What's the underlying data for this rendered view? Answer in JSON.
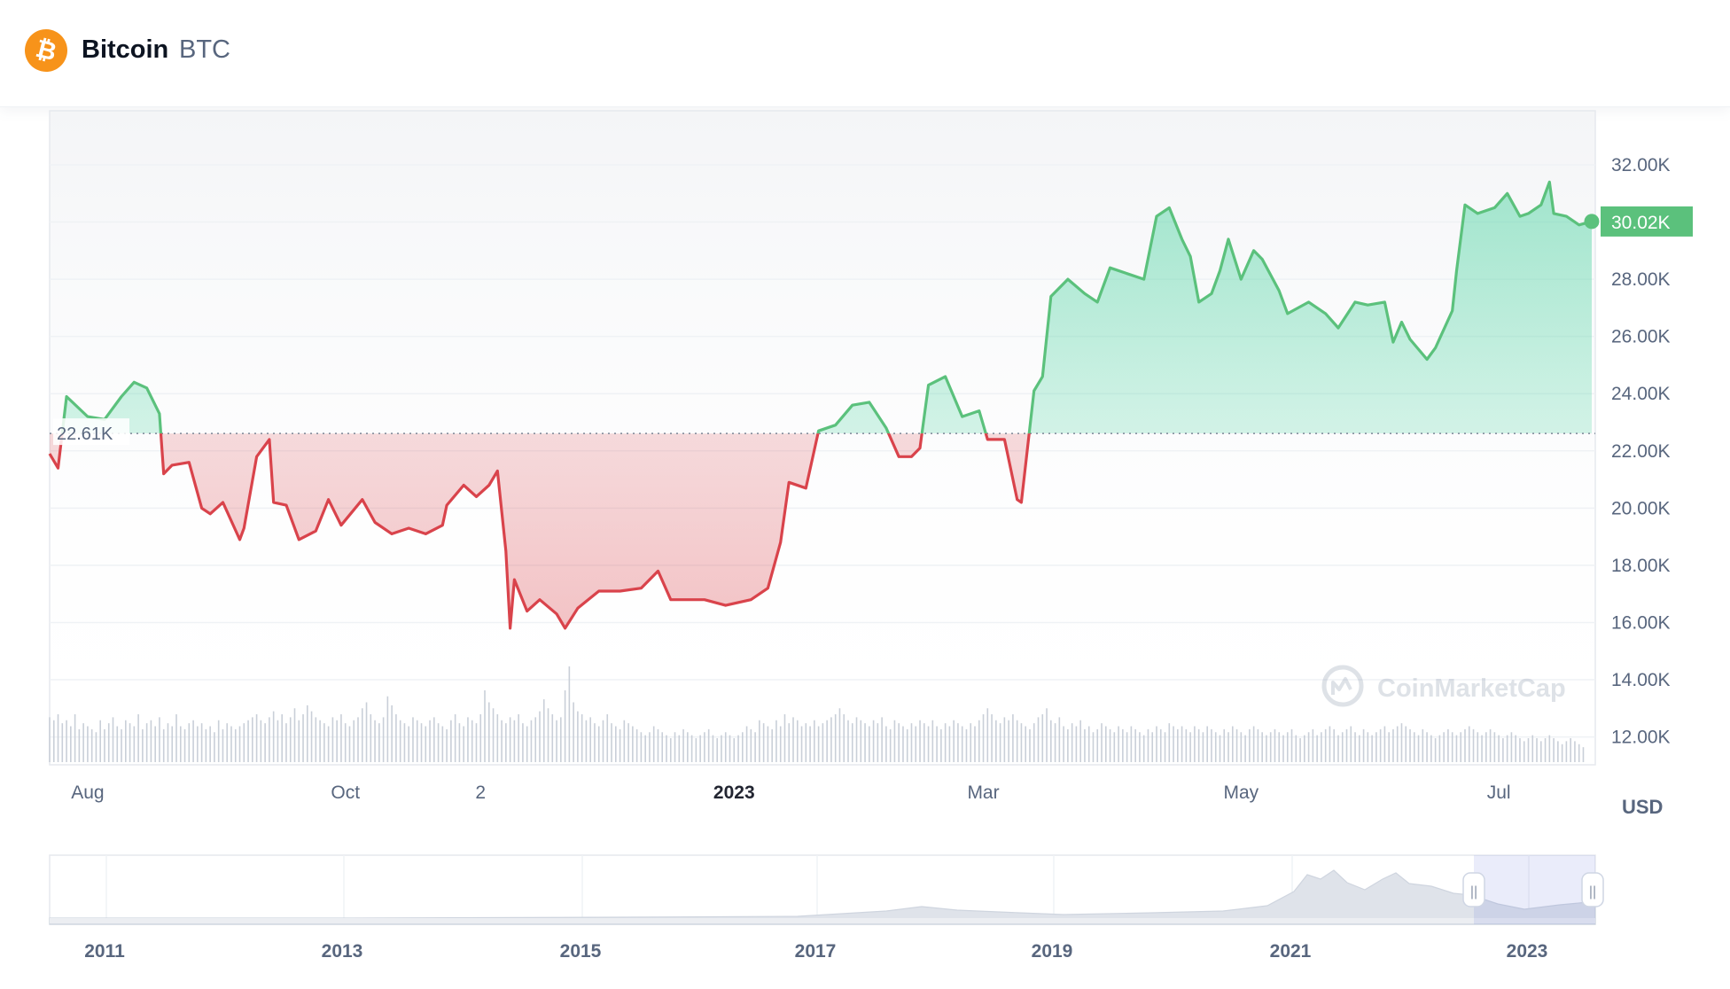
{
  "asset": {
    "name": "Bitcoin",
    "symbol": "BTC",
    "logo_glyph": "₿",
    "logo_color": "#f7931a"
  },
  "chart_data": {
    "type": "line",
    "title": "",
    "currency_label": "USD",
    "watermark": "CoinMarketCap",
    "ylim": [
      11000,
      34000
    ],
    "y_ticks": [
      12000,
      14000,
      16000,
      18000,
      20000,
      22000,
      24000,
      26000,
      28000,
      30000,
      32000
    ],
    "y_tick_labels": [
      "12.00K",
      "14.00K",
      "16.00K",
      "18.00K",
      "20.00K",
      "22.00K",
      "24.00K",
      "26.00K",
      "28.00K",
      "30.00K",
      "32.00K"
    ],
    "x_range": [
      "2022-07-23",
      "2023-07-23"
    ],
    "x_ticks": [
      {
        "date": "2022-08-01",
        "label": "Aug",
        "bold": false
      },
      {
        "date": "2022-10-01",
        "label": "Oct",
        "bold": false
      },
      {
        "date": "2022-11-02",
        "label": "2",
        "bold": false
      },
      {
        "date": "2023-01-01",
        "label": "2023",
        "bold": true
      },
      {
        "date": "2023-03-01",
        "label": "Mar",
        "bold": false
      },
      {
        "date": "2023-05-01",
        "label": "May",
        "bold": false
      },
      {
        "date": "2023-07-01",
        "label": "Jul",
        "bold": false
      }
    ],
    "reference": {
      "value": 22610,
      "label": "22.61K"
    },
    "last": {
      "value": 30020,
      "label": "30.02K"
    },
    "colors": {
      "up": "#16c784",
      "up_line": "#5bc17c",
      "down": "#d9434b",
      "grid": "#eff2f5"
    },
    "series": [
      {
        "values": [
          [
            "2022-07-23",
            21900
          ],
          [
            "2022-07-25",
            21400
          ],
          [
            "2022-07-27",
            23900
          ],
          [
            "2022-08-01",
            23200
          ],
          [
            "2022-08-05",
            23100
          ],
          [
            "2022-08-09",
            23900
          ],
          [
            "2022-08-12",
            24400
          ],
          [
            "2022-08-15",
            24200
          ],
          [
            "2022-08-18",
            23300
          ],
          [
            "2022-08-19",
            21200
          ],
          [
            "2022-08-21",
            21500
          ],
          [
            "2022-08-25",
            21600
          ],
          [
            "2022-08-28",
            20000
          ],
          [
            "2022-08-30",
            19800
          ],
          [
            "2022-09-02",
            20200
          ],
          [
            "2022-09-06",
            18900
          ],
          [
            "2022-09-07",
            19300
          ],
          [
            "2022-09-10",
            21800
          ],
          [
            "2022-09-13",
            22400
          ],
          [
            "2022-09-14",
            20200
          ],
          [
            "2022-09-17",
            20100
          ],
          [
            "2022-09-20",
            18900
          ],
          [
            "2022-09-24",
            19200
          ],
          [
            "2022-09-27",
            20300
          ],
          [
            "2022-09-30",
            19400
          ],
          [
            "2022-10-05",
            20300
          ],
          [
            "2022-10-08",
            19500
          ],
          [
            "2022-10-12",
            19100
          ],
          [
            "2022-10-16",
            19300
          ],
          [
            "2022-10-20",
            19100
          ],
          [
            "2022-10-24",
            19400
          ],
          [
            "2022-10-25",
            20100
          ],
          [
            "2022-10-29",
            20800
          ],
          [
            "2022-11-01",
            20400
          ],
          [
            "2022-11-04",
            20800
          ],
          [
            "2022-11-06",
            21300
          ],
          [
            "2022-11-08",
            18500
          ],
          [
            "2022-11-09",
            15800
          ],
          [
            "2022-11-10",
            17500
          ],
          [
            "2022-11-13",
            16400
          ],
          [
            "2022-11-16",
            16800
          ],
          [
            "2022-11-20",
            16300
          ],
          [
            "2022-11-22",
            15800
          ],
          [
            "2022-11-25",
            16500
          ],
          [
            "2022-11-30",
            17100
          ],
          [
            "2022-12-05",
            17100
          ],
          [
            "2022-12-10",
            17200
          ],
          [
            "2022-12-14",
            17800
          ],
          [
            "2022-12-17",
            16800
          ],
          [
            "2022-12-20",
            16800
          ],
          [
            "2022-12-25",
            16800
          ],
          [
            "2022-12-30",
            16600
          ],
          [
            "2023-01-05",
            16800
          ],
          [
            "2023-01-09",
            17200
          ],
          [
            "2023-01-12",
            18800
          ],
          [
            "2023-01-14",
            20900
          ],
          [
            "2023-01-18",
            20700
          ],
          [
            "2023-01-21",
            22700
          ],
          [
            "2023-01-25",
            22900
          ],
          [
            "2023-01-29",
            23600
          ],
          [
            "2023-02-02",
            23700
          ],
          [
            "2023-02-06",
            22800
          ],
          [
            "2023-02-09",
            21800
          ],
          [
            "2023-02-12",
            21800
          ],
          [
            "2023-02-14",
            22100
          ],
          [
            "2023-02-16",
            24300
          ],
          [
            "2023-02-20",
            24600
          ],
          [
            "2023-02-24",
            23200
          ],
          [
            "2023-02-28",
            23400
          ],
          [
            "2023-03-02",
            22400
          ],
          [
            "2023-03-06",
            22400
          ],
          [
            "2023-03-09",
            20300
          ],
          [
            "2023-03-10",
            20200
          ],
          [
            "2023-03-13",
            24100
          ],
          [
            "2023-03-15",
            24600
          ],
          [
            "2023-03-17",
            27400
          ],
          [
            "2023-03-21",
            28000
          ],
          [
            "2023-03-25",
            27500
          ],
          [
            "2023-03-28",
            27200
          ],
          [
            "2023-03-31",
            28400
          ],
          [
            "2023-04-04",
            28200
          ],
          [
            "2023-04-08",
            28000
          ],
          [
            "2023-04-11",
            30200
          ],
          [
            "2023-04-14",
            30500
          ],
          [
            "2023-04-17",
            29400
          ],
          [
            "2023-04-19",
            28800
          ],
          [
            "2023-04-21",
            27200
          ],
          [
            "2023-04-24",
            27500
          ],
          [
            "2023-04-26",
            28300
          ],
          [
            "2023-04-28",
            29400
          ],
          [
            "2023-05-01",
            28000
          ],
          [
            "2023-05-04",
            29000
          ],
          [
            "2023-05-06",
            28700
          ],
          [
            "2023-05-10",
            27600
          ],
          [
            "2023-05-12",
            26800
          ],
          [
            "2023-05-17",
            27200
          ],
          [
            "2023-05-21",
            26800
          ],
          [
            "2023-05-24",
            26300
          ],
          [
            "2023-05-28",
            27200
          ],
          [
            "2023-05-31",
            27100
          ],
          [
            "2023-06-04",
            27200
          ],
          [
            "2023-06-06",
            25800
          ],
          [
            "2023-06-08",
            26500
          ],
          [
            "2023-06-10",
            25900
          ],
          [
            "2023-06-14",
            25200
          ],
          [
            "2023-06-16",
            25600
          ],
          [
            "2023-06-20",
            26900
          ],
          [
            "2023-06-21",
            28300
          ],
          [
            "2023-06-23",
            30600
          ],
          [
            "2023-06-26",
            30300
          ],
          [
            "2023-06-30",
            30500
          ],
          [
            "2023-07-03",
            31000
          ],
          [
            "2023-07-06",
            30200
          ],
          [
            "2023-07-08",
            30300
          ],
          [
            "2023-07-11",
            30600
          ],
          [
            "2023-07-13",
            31400
          ],
          [
            "2023-07-14",
            30300
          ],
          [
            "2023-07-17",
            30200
          ],
          [
            "2023-07-20",
            29900
          ],
          [
            "2023-07-23",
            30020
          ]
        ]
      }
    ],
    "volume": {
      "start": "2022-07-23",
      "values": [
        15,
        14,
        16,
        13,
        14,
        12,
        16,
        11,
        13,
        12,
        11,
        10,
        14,
        11,
        13,
        15,
        12,
        11,
        14,
        13,
        12,
        16,
        11,
        13,
        14,
        12,
        15,
        11,
        13,
        12,
        16,
        12,
        11,
        13,
        14,
        12,
        13,
        11,
        12,
        10,
        14,
        11,
        13,
        12,
        11,
        12,
        13,
        14,
        15,
        16,
        14,
        13,
        15,
        17,
        14,
        16,
        13,
        15,
        18,
        14,
        16,
        19,
        17,
        15,
        14,
        13,
        12,
        15,
        14,
        16,
        13,
        12,
        14,
        15,
        18,
        20,
        16,
        14,
        13,
        15,
        22,
        19,
        16,
        14,
        13,
        12,
        15,
        14,
        13,
        12,
        14,
        15,
        13,
        12,
        11,
        14,
        16,
        13,
        12,
        15,
        14,
        13,
        16,
        24,
        20,
        18,
        16,
        14,
        13,
        15,
        14,
        16,
        13,
        12,
        14,
        15,
        17,
        21,
        18,
        16,
        14,
        15,
        24,
        32,
        20,
        17,
        16,
        14,
        15,
        13,
        12,
        14,
        16,
        13,
        12,
        11,
        14,
        13,
        12,
        11,
        10,
        9,
        10,
        12,
        11,
        10,
        9,
        8,
        10,
        9,
        11,
        10,
        9,
        8,
        9,
        10,
        11,
        9,
        8,
        9,
        10,
        9,
        8,
        9,
        10,
        12,
        11,
        10,
        14,
        13,
        12,
        11,
        14,
        12,
        16,
        13,
        15,
        14,
        12,
        13,
        12,
        14,
        12,
        13,
        14,
        15,
        16,
        18,
        16,
        14,
        13,
        15,
        14,
        13,
        12,
        14,
        13,
        15,
        12,
        11,
        14,
        13,
        12,
        11,
        13,
        12,
        14,
        13,
        12,
        14,
        12,
        11,
        13,
        12,
        14,
        13,
        12,
        11,
        13,
        12,
        14,
        16,
        18,
        16,
        14,
        13,
        15,
        14,
        16,
        14,
        13,
        12,
        11,
        13,
        15,
        16,
        18,
        14,
        13,
        15,
        12,
        11,
        13,
        12,
        14,
        11,
        12,
        10,
        11,
        13,
        12,
        11,
        10,
        12,
        11,
        10,
        12,
        11,
        10,
        9,
        11,
        10,
        12,
        11,
        10,
        13,
        12,
        11,
        12,
        11,
        10,
        12,
        11,
        10,
        12,
        11,
        10,
        9,
        11,
        10,
        12,
        11,
        10,
        9,
        11,
        12,
        11,
        10,
        9,
        10,
        11,
        10,
        9,
        10,
        11,
        9,
        8,
        9,
        10,
        11,
        9,
        10,
        11,
        12,
        11,
        9,
        10,
        11,
        12,
        10,
        9,
        11,
        10,
        9,
        10,
        11,
        12,
        10,
        11,
        12,
        13,
        12,
        11,
        10,
        9,
        11,
        10,
        9,
        8,
        9,
        10,
        11,
        10,
        9,
        10,
        11,
        12,
        11,
        10,
        9,
        10,
        11,
        10,
        9,
        8,
        9,
        10,
        9,
        8,
        7,
        8,
        9,
        8,
        7,
        8,
        9,
        8,
        7,
        6,
        7,
        8,
        7,
        6,
        5
      ]
    }
  },
  "navigator": {
    "year_labels": [
      "2011",
      "2013",
      "2015",
      "2017",
      "2019",
      "2021",
      "2023"
    ],
    "handle_glyph": "||"
  }
}
